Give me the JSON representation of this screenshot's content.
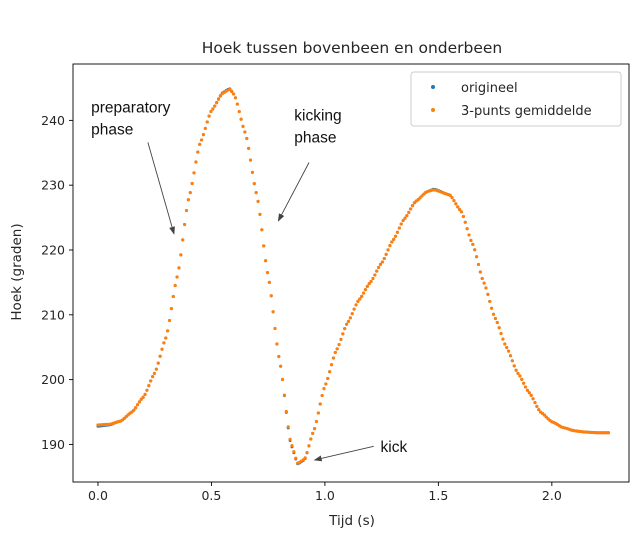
{
  "chart_data": {
    "type": "scatter",
    "title": "Hoek tussen bovenbeen en onderbeen",
    "xlabel": "Tijd (s)",
    "ylabel": "Hoek (graden)",
    "xlim": [
      -0.11,
      2.34
    ],
    "ylim": [
      184.2,
      248.7
    ],
    "xticks": [
      0.0,
      0.5,
      1.0,
      1.5,
      2.0
    ],
    "yticks": [
      190,
      200,
      210,
      220,
      230,
      240
    ],
    "xtick_labels": [
      "0.0",
      "0.5",
      "1.0",
      "1.5",
      "2.0"
    ],
    "ytick_labels": [
      "190",
      "200",
      "210",
      "220",
      "230",
      "240"
    ],
    "grid": false,
    "legend_position": "top-right",
    "x_start": 0.0,
    "x_end": 2.25,
    "sample_step": 0.0083,
    "series": [
      {
        "name": "origineel",
        "color": "#1f77b4",
        "keypoints": [
          [
            0.0,
            192.8
          ],
          [
            0.05,
            193.0
          ],
          [
            0.1,
            193.6
          ],
          [
            0.15,
            195.0
          ],
          [
            0.2,
            197.3
          ],
          [
            0.25,
            201.0
          ],
          [
            0.3,
            206.5
          ],
          [
            0.35,
            216.0
          ],
          [
            0.4,
            228.0
          ],
          [
            0.45,
            236.5
          ],
          [
            0.5,
            241.5
          ],
          [
            0.55,
            244.3
          ],
          [
            0.58,
            244.9
          ],
          [
            0.6,
            244.0
          ],
          [
            0.65,
            238.0
          ],
          [
            0.7,
            228.5
          ],
          [
            0.75,
            216.0
          ],
          [
            0.8,
            203.0
          ],
          [
            0.85,
            190.0
          ],
          [
            0.88,
            187.0
          ],
          [
            0.91,
            187.6
          ],
          [
            0.95,
            192.0
          ],
          [
            1.0,
            199.0
          ],
          [
            1.05,
            204.5
          ],
          [
            1.1,
            208.8
          ],
          [
            1.15,
            212.3
          ],
          [
            1.2,
            215.0
          ],
          [
            1.25,
            218.0
          ],
          [
            1.3,
            221.5
          ],
          [
            1.35,
            224.8
          ],
          [
            1.4,
            227.5
          ],
          [
            1.45,
            229.0
          ],
          [
            1.48,
            229.4
          ],
          [
            1.55,
            228.5
          ],
          [
            1.6,
            226.0
          ],
          [
            1.65,
            221.0
          ],
          [
            1.7,
            215.0
          ],
          [
            1.75,
            209.5
          ],
          [
            1.8,
            205.0
          ],
          [
            1.85,
            201.0
          ],
          [
            1.9,
            198.0
          ],
          [
            1.95,
            195.0
          ],
          [
            2.0,
            193.5
          ],
          [
            2.05,
            192.6
          ],
          [
            2.1,
            192.1
          ],
          [
            2.15,
            191.9
          ],
          [
            2.2,
            191.8
          ],
          [
            2.25,
            191.8
          ]
        ]
      },
      {
        "name": "3-punts gemiddelde",
        "color": "#ff7f0e",
        "keypoints": [
          [
            0.0,
            193.0
          ],
          [
            0.05,
            193.1
          ],
          [
            0.1,
            193.6
          ],
          [
            0.15,
            195.0
          ],
          [
            0.2,
            197.3
          ],
          [
            0.25,
            201.0
          ],
          [
            0.3,
            206.5
          ],
          [
            0.35,
            216.0
          ],
          [
            0.4,
            228.0
          ],
          [
            0.45,
            236.5
          ],
          [
            0.5,
            241.5
          ],
          [
            0.55,
            244.2
          ],
          [
            0.58,
            244.8
          ],
          [
            0.6,
            244.0
          ],
          [
            0.65,
            238.0
          ],
          [
            0.7,
            228.5
          ],
          [
            0.75,
            216.0
          ],
          [
            0.8,
            203.0
          ],
          [
            0.85,
            190.2
          ],
          [
            0.88,
            187.1
          ],
          [
            0.91,
            187.7
          ],
          [
            0.95,
            192.0
          ],
          [
            1.0,
            199.0
          ],
          [
            1.05,
            204.5
          ],
          [
            1.1,
            208.8
          ],
          [
            1.15,
            212.3
          ],
          [
            1.2,
            215.0
          ],
          [
            1.25,
            218.0
          ],
          [
            1.3,
            221.5
          ],
          [
            1.35,
            224.8
          ],
          [
            1.4,
            227.5
          ],
          [
            1.45,
            229.0
          ],
          [
            1.48,
            229.3
          ],
          [
            1.55,
            228.5
          ],
          [
            1.6,
            226.0
          ],
          [
            1.65,
            221.0
          ],
          [
            1.7,
            215.0
          ],
          [
            1.75,
            209.5
          ],
          [
            1.8,
            205.0
          ],
          [
            1.85,
            201.0
          ],
          [
            1.9,
            198.0
          ],
          [
            1.95,
            195.0
          ],
          [
            2.0,
            193.5
          ],
          [
            2.05,
            192.6
          ],
          [
            2.1,
            192.1
          ],
          [
            2.15,
            191.9
          ],
          [
            2.2,
            191.8
          ],
          [
            2.25,
            191.8
          ]
        ]
      }
    ],
    "annotations": [
      {
        "id": "preparatory",
        "lines": [
          "preparatory",
          "phase"
        ],
        "text_x": -0.03,
        "text_y": 241.2,
        "arrow_from": [
          0.22,
          236.6
        ],
        "arrow_to": [
          0.335,
          222.5
        ]
      },
      {
        "id": "kicking",
        "lines": [
          "kicking",
          "phase"
        ],
        "text_x": 0.865,
        "text_y": 240.0,
        "arrow_from": [
          0.93,
          233.5
        ],
        "arrow_to": [
          0.795,
          224.5
        ]
      },
      {
        "id": "kick",
        "lines": [
          "kick"
        ],
        "text_x": 1.245,
        "text_y": 188.8,
        "arrow_from": [
          1.215,
          189.7
        ],
        "arrow_to": [
          0.955,
          187.6
        ]
      }
    ]
  }
}
